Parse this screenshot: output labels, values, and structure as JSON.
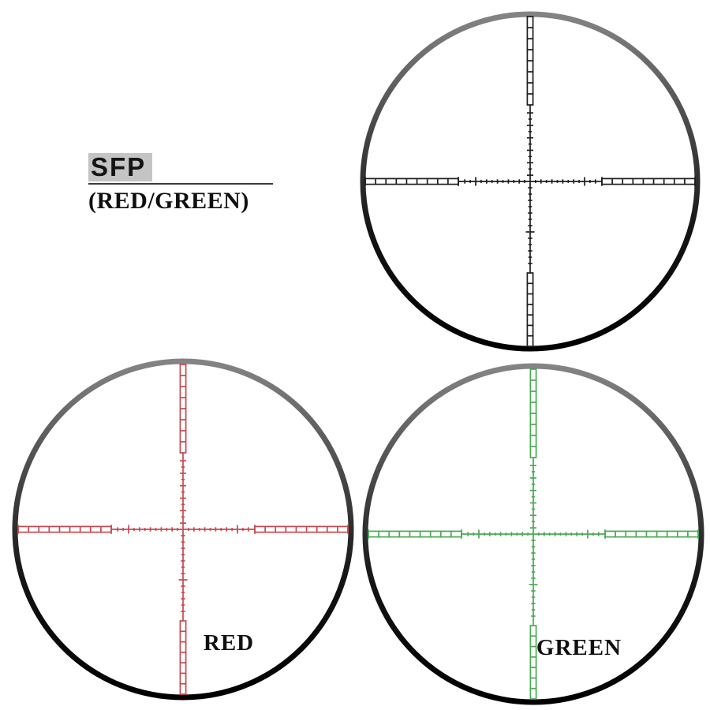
{
  "page": {
    "background": "#ffffff"
  },
  "header": {
    "title": "SFP",
    "subtitle": "(RED/GREEN)",
    "title_highlight_color": "#c4c4c4",
    "underline_color": "#3c3c3c",
    "text_color": "#111111"
  },
  "scopes": [
    {
      "name": "sfp-black-reticle",
      "label": "",
      "reticle_color": "#1e1e1e"
    },
    {
      "name": "sfp-red-reticle",
      "label": "RED",
      "reticle_color": "#c64a4f"
    },
    {
      "name": "sfp-green-reticle",
      "label": "GREEN",
      "reticle_color": "#4aaa54"
    }
  ],
  "rim": {
    "top_color": "#848484",
    "bottom_color": "#000000"
  },
  "label_color": "#101010"
}
